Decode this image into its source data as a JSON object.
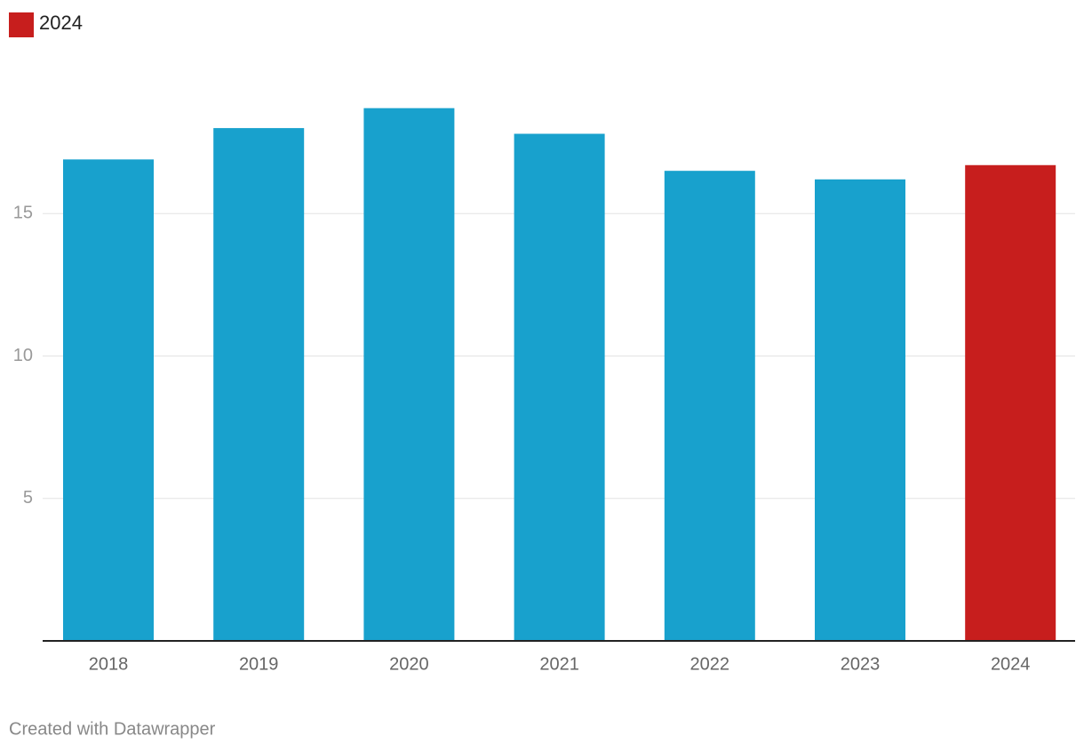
{
  "chart_data": {
    "type": "bar",
    "legend": [
      {
        "name": "2024",
        "color": "#c71e1d"
      }
    ],
    "categories": [
      "2018",
      "2019",
      "2020",
      "2021",
      "2022",
      "2023",
      "2024"
    ],
    "values": [
      16.9,
      18.0,
      18.7,
      17.8,
      16.5,
      16.2,
      16.7
    ],
    "colors": [
      "#18a1cd",
      "#18a1cd",
      "#18a1cd",
      "#18a1cd",
      "#18a1cd",
      "#18a1cd",
      "#c71e1d"
    ],
    "ylim": [
      0,
      20
    ],
    "yticks": [
      5,
      10,
      15
    ],
    "grid": true,
    "footer": "Created with Datawrapper"
  }
}
